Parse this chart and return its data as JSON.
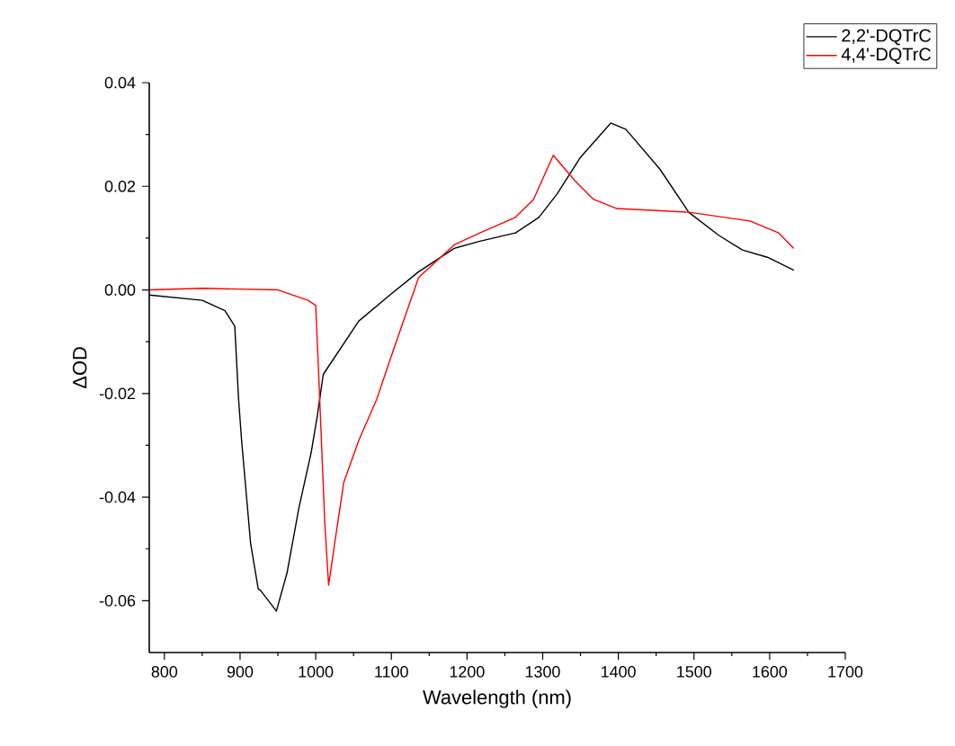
{
  "chart_data": {
    "type": "line",
    "xlabel": "Wavelength (nm)",
    "ylabel": "ΔOD",
    "x": [
      780,
      850,
      880,
      893,
      898,
      902,
      914,
      924,
      927,
      948,
      962,
      978,
      994,
      1002,
      1010,
      1057,
      1098,
      1136,
      1183,
      1217,
      1264,
      1295,
      1319,
      1350,
      1390,
      1410,
      1455,
      1493,
      1533,
      1564,
      1597,
      1632
    ],
    "xlim": [
      780,
      1700
    ],
    "xticks": [
      800,
      900,
      1000,
      1100,
      1200,
      1300,
      1400,
      1500,
      1600,
      1700
    ],
    "ylim": [
      -0.07,
      0.04
    ],
    "yticks": [
      {
        "value": -0.06,
        "label": "-0.06"
      },
      {
        "value": -0.04,
        "label": "-0.04"
      },
      {
        "value": -0.02,
        "label": "-0.02"
      },
      {
        "value": 0,
        "label": "0.00"
      },
      {
        "value": 0.02,
        "label": "0.02"
      },
      {
        "value": 0.04,
        "label": "0.04"
      }
    ],
    "legend": "top right",
    "grid": false,
    "marker": "none",
    "line_style": "solid",
    "series": [
      {
        "name": "2,2'-DQTrC",
        "color": "#000000",
        "values": [
          -0.001,
          -0.002,
          -0.004,
          -0.007,
          -0.021,
          -0.029,
          -0.049,
          -0.0577,
          -0.058,
          -0.062,
          -0.0547,
          -0.0419,
          -0.0314,
          -0.0244,
          -0.0163,
          -0.006,
          -0.001,
          0.0035,
          0.008,
          0.0094,
          0.011,
          0.014,
          0.0185,
          0.0256,
          0.0322,
          0.031,
          0.0233,
          0.015,
          0.0105,
          0.0077,
          0.0063,
          0.0038
        ]
      },
      {
        "name": "4,4'-DQTrC",
        "color": "#ff0000",
        "x": [
          780,
          850,
          950,
          990,
          1000,
          1005,
          1012,
          1017,
          1025,
          1037,
          1057,
          1081,
          1097,
          1136,
          1183,
          1217,
          1264,
          1288,
          1314,
          1343,
          1367,
          1398,
          1493,
          1574,
          1612,
          1632
        ],
        "values": [
          0.0,
          0.0003,
          0.0,
          -0.002,
          -0.003,
          -0.02,
          -0.045,
          -0.057,
          -0.049,
          -0.0372,
          -0.029,
          -0.021,
          -0.014,
          0.0024,
          0.0087,
          0.011,
          0.014,
          0.0175,
          0.026,
          0.021,
          0.0175,
          0.0157,
          0.015,
          0.0133,
          0.011,
          0.008
        ]
      }
    ]
  }
}
